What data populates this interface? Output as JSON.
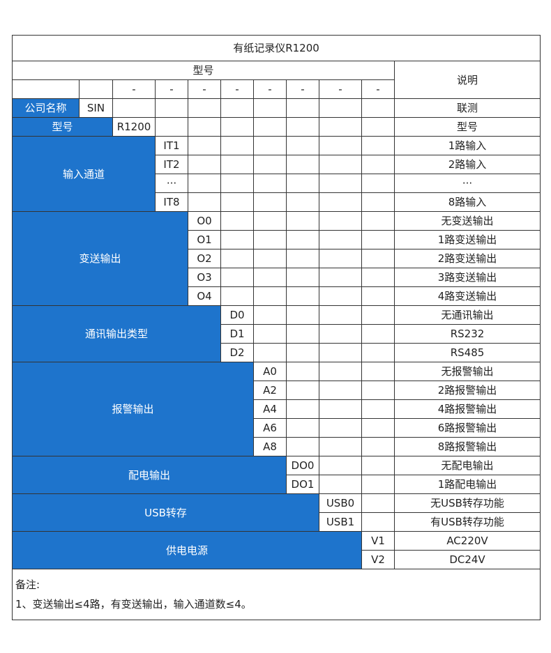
{
  "title": "有纸记录仪R1200",
  "header": {
    "model_label": "型号",
    "desc_label": "说明"
  },
  "dash": "-",
  "company_row": {
    "label": "公司名称",
    "code": "SIN",
    "desc": "联测"
  },
  "model_row": {
    "label": "型号",
    "code": "R1200",
    "desc": "型号"
  },
  "groups": [
    {
      "label": "输入通道",
      "rows": [
        {
          "code": "IT1",
          "desc": "1路输入"
        },
        {
          "code": "IT2",
          "desc": "2路输入"
        },
        {
          "code": "···",
          "desc": "···"
        },
        {
          "code": "IT8",
          "desc": "8路输入"
        }
      ]
    },
    {
      "label": "变送输出",
      "rows": [
        {
          "code": "O0",
          "desc": "无变送输出"
        },
        {
          "code": "O1",
          "desc": "1路变送输出"
        },
        {
          "code": "O2",
          "desc": "2路变送输出"
        },
        {
          "code": "O3",
          "desc": "3路变送输出"
        },
        {
          "code": "O4",
          "desc": "4路变送输出"
        }
      ]
    },
    {
      "label": "通讯输出类型",
      "rows": [
        {
          "code": "D0",
          "desc": "无通讯输出"
        },
        {
          "code": "D1",
          "desc": "RS232"
        },
        {
          "code": "D2",
          "desc": "RS485"
        }
      ]
    },
    {
      "label": "报警输出",
      "rows": [
        {
          "code": "A0",
          "desc": "无报警输出"
        },
        {
          "code": "A2",
          "desc": "2路报警输出"
        },
        {
          "code": "A4",
          "desc": "4路报警输出"
        },
        {
          "code": "A6",
          "desc": "6路报警输出"
        },
        {
          "code": "A8",
          "desc": "8路报警输出"
        }
      ]
    },
    {
      "label": "配电输出",
      "rows": [
        {
          "code": "DO0",
          "desc": "无配电输出"
        },
        {
          "code": "DO1",
          "desc": "1路配电输出"
        }
      ]
    },
    {
      "label": "USB转存",
      "rows": [
        {
          "code": "USB0",
          "desc": "无USB转存功能"
        },
        {
          "code": "USB1",
          "desc": "有USB转存功能"
        }
      ]
    },
    {
      "label": "供电电源",
      "rows": [
        {
          "code": "V1",
          "desc": "AC220V"
        },
        {
          "code": "V2",
          "desc": "DC24V"
        }
      ]
    }
  ],
  "notes": {
    "heading": "备注:",
    "items": [
      "1、变送输出≤4路，有变送输出，输入通道数≤4。"
    ]
  },
  "colors": {
    "blue": "#1e74cc",
    "border": "#333333"
  }
}
